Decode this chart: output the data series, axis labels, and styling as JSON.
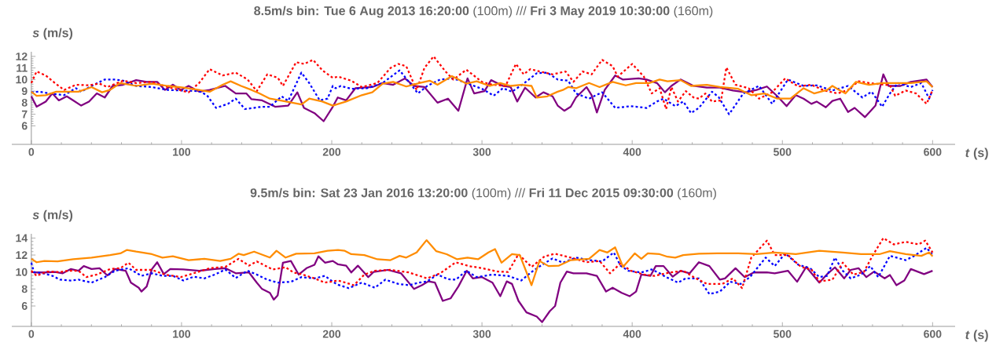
{
  "chart_data": [
    {
      "type": "line",
      "title": "**8.5m/s bin: Tue 6 Aug 2013 16:20:00** (100m)   ///   **Fri 3 May 2019 10:30:00** (160m)",
      "xlabel": "*t* (s)",
      "ylabel": "*s* (m/s)",
      "xlim": [
        -13,
        615
      ],
      "ylim": [
        4.4,
        12.4
      ],
      "xticks": [
        0,
        100,
        200,
        300,
        400,
        500,
        600
      ],
      "yticks": [
        6,
        7,
        8,
        9,
        10,
        11,
        12
      ],
      "series": [
        {
          "color": "#800080",
          "line_style": "solid",
          "x": [
            0,
            3.5,
            9.6,
            14,
            18.3,
            23.6,
            27.9,
            33.2,
            38.4,
            43.6,
            48.9,
            54.1,
            61.1,
            69.8,
            76.8,
            83.8,
            89,
            94.2,
            99.5,
            104.7,
            111.7,
            118.7,
            129.1,
            136.1,
            143.1,
            146.6,
            153.6,
            162.3,
            171,
            177.1,
            181.5,
            188.5,
            194.6,
            200.7,
            204,
            209.6,
            215.7,
            227,
            233.9,
            240.9,
            248.7,
            254.8,
            261.7,
            270.4,
            277.4,
            284.3,
            290.4,
            294.8,
            301.7,
            306.1,
            313.9,
            319.1,
            323.5,
            328.7,
            335.7,
            340.9,
            347,
            350.4,
            354.8,
            359.1,
            362.6,
            369.6,
            373,
            376.5,
            381.7,
            388.7,
            393.9,
            404.3,
            409.6,
            416.5,
            421.8,
            426.1,
            432.2,
            440.9,
            449.7,
            458.4,
            467.1,
            475.8,
            482.8,
            489.7,
            496.7,
            502.8,
            508.9,
            514.1,
            519.3,
            522.8,
            528.9,
            533.3,
            538.5,
            543.7,
            548.1,
            555,
            562,
            567.2,
            570.7,
            578.6,
            585.5,
            596,
            600
          ],
          "values": [
            8.55,
            7.65,
            8.1,
            8.8,
            8.2,
            8.55,
            8.2,
            7.75,
            8.1,
            8.8,
            8.45,
            9.45,
            9.55,
            9.95,
            9.8,
            9.8,
            9.1,
            9.55,
            9.1,
            9.45,
            8.95,
            9.1,
            9.45,
            8.8,
            8.8,
            8.3,
            8.2,
            7.65,
            7.75,
            8.9,
            7.55,
            7.1,
            6.4,
            7.65,
            8.45,
            8.2,
            9.25,
            9.35,
            9.7,
            9.55,
            10.1,
            9.45,
            9.35,
            8,
            8.35,
            7.3,
            10.1,
            8.8,
            9,
            9.95,
            9.45,
            9.35,
            8.1,
            9.3,
            8.45,
            8.9,
            8.55,
            7.75,
            7.3,
            7.65,
            8.45,
            9.35,
            8.65,
            7.15,
            9.1,
            10.35,
            10,
            10.1,
            10,
            9.7,
            8.9,
            9.45,
            10,
            9.45,
            9.3,
            9.3,
            9.05,
            8.9,
            9.1,
            9.4,
            8.55,
            7.7,
            8.65,
            8.35,
            7.9,
            8.1,
            7.6,
            8.15,
            8.35,
            7.2,
            7.55,
            6.75,
            7.75,
            10.45,
            9.45,
            9.45,
            9.8,
            10,
            9.35
          ]
        },
        {
          "color": "#0000ff",
          "line_style": "dotted",
          "x": [
            0,
            5.2,
            12.2,
            21.8,
            29.7,
            33.2,
            40.1,
            48.9,
            55.8,
            61.1,
            69.8,
            80.3,
            90.8,
            101.2,
            111.7,
            116.9,
            123,
            130.9,
            136.1,
            142.2,
            153.6,
            158.8,
            166.7,
            171,
            179.8,
            185,
            192,
            197.2,
            200.7,
            202.6,
            206.1,
            213,
            223.5,
            233.9,
            245.2,
            251.3,
            257.4,
            263.5,
            272.2,
            280.9,
            289.6,
            300,
            307.8,
            313.9,
            320,
            327.8,
            336.5,
            343.5,
            350.4,
            357.4,
            362.6,
            371.3,
            380,
            388.7,
            399.1,
            409.6,
            416.5,
            420.9,
            428.7,
            434,
            439.2,
            444.4,
            453.1,
            457.5,
            464.5,
            474,
            484.5,
            493.2,
            503.7,
            514.1,
            522.8,
            533.3,
            543.7,
            553.3,
            559.4,
            566.4,
            571.6,
            576.8,
            585.5,
            592.5,
            597.7,
            600
          ],
          "values": [
            8.9,
            8.95,
            8.8,
            8.65,
            9.25,
            8.95,
            9.45,
            10,
            10,
            9.9,
            9.45,
            9.35,
            9.1,
            9.05,
            9,
            8.65,
            7.55,
            7.9,
            8.35,
            7.45,
            7.65,
            7.65,
            8.55,
            8.15,
            10.6,
            9.7,
            8.2,
            8.35,
            9.45,
            9.25,
            9.45,
            9.2,
            9.25,
            9.7,
            10.8,
            9.8,
            8.8,
            9.45,
            10,
            10.1,
            9.7,
            9.2,
            8.6,
            9.25,
            8.95,
            9.65,
            10.55,
            10.6,
            10,
            9.9,
            8.8,
            8.35,
            8.9,
            7.55,
            7.7,
            7.55,
            8.1,
            8.35,
            7.7,
            8.1,
            7.1,
            7.55,
            8.95,
            8.5,
            7,
            8.8,
            9.45,
            7.9,
            10,
            9.45,
            9.5,
            9.05,
            9.45,
            8.45,
            8.95,
            7.65,
            8.8,
            9.7,
            9.35,
            9.7,
            8.35,
            9.1
          ]
        },
        {
          "color": "#ff0000",
          "line_style": "dotted",
          "x": [
            0,
            3.5,
            9.6,
            15.7,
            21.8,
            29.7,
            38.4,
            45.4,
            50.6,
            61.1,
            69.8,
            80.3,
            90.8,
            104.7,
            111.7,
            118.7,
            127.4,
            136.1,
            144,
            150.1,
            157.1,
            164.1,
            167.5,
            176.3,
            181.5,
            187.6,
            193.7,
            200.7,
            204.3,
            213,
            220,
            230.4,
            239.1,
            244.3,
            249.6,
            256.5,
            261.7,
            267.8,
            275.7,
            280.9,
            289.6,
            300,
            307,
            315.7,
            322.6,
            327.8,
            332.2,
            338.3,
            347,
            355.7,
            360.9,
            367,
            373,
            380,
            387,
            390.4,
            400,
            407.8,
            413,
            418.3,
            422.6,
            426.1,
            430.5,
            435.7,
            440.9,
            444.4,
            448.8,
            453.1,
            459.2,
            462.7,
            468.8,
            477.5,
            484.5,
            493.2,
            501.9,
            510.6,
            519.3,
            528,
            536.8,
            543.7,
            550.7,
            557.7,
            571.6,
            575.1,
            582.1,
            589,
            596,
            600
          ],
          "values": [
            9.7,
            10.7,
            10.35,
            9.7,
            9.1,
            9.55,
            9.5,
            9.65,
            9.35,
            9.9,
            9.7,
            9.8,
            9.35,
            8.9,
            9.7,
            10.9,
            10.35,
            10.6,
            10,
            9,
            10.45,
            10.15,
            9.45,
            11.5,
            11.35,
            11.7,
            10.8,
            10.15,
            10.25,
            9.9,
            9.35,
            9.7,
            11,
            11.35,
            11.15,
            9.1,
            11,
            12,
            10.7,
            10,
            10.85,
            9.8,
            9.55,
            9.45,
            11.35,
            10.45,
            10.9,
            10.7,
            10.45,
            10.7,
            9.8,
            10.7,
            10.45,
            11.7,
            11.15,
            10.25,
            11.35,
            10.25,
            8.8,
            9.25,
            7.45,
            9.35,
            8.1,
            9,
            8.45,
            8.35,
            8.8,
            8.1,
            8.2,
            11.05,
            9.55,
            9.25,
            8.35,
            8.9,
            10.1,
            9.4,
            9.55,
            9.05,
            8.8,
            9.1,
            9.85,
            9.7,
            9.5,
            8.6,
            9.05,
            8.8,
            7.9,
            9.1
          ]
        },
        {
          "color": "#ff8c00",
          "line_style": "solid",
          "x": [
            0,
            3.5,
            9.6,
            16.6,
            22.7,
            31.4,
            40.1,
            47.1,
            52.4,
            59.3,
            69.8,
            80.3,
            90.8,
            101.2,
            111.7,
            118.7,
            127.4,
            132.7,
            139.6,
            146.6,
            151.8,
            158.8,
            167.5,
            179.8,
            185,
            193.7,
            200.7,
            209.6,
            220,
            227,
            233.9,
            240.9,
            249.6,
            258.3,
            265.2,
            270.4,
            280,
            289.6,
            296.5,
            305.2,
            312.2,
            319.1,
            326.1,
            333,
            336.5,
            343.5,
            350.4,
            353.9,
            357.4,
            362.6,
            371.3,
            378.3,
            387,
            395.7,
            402.6,
            411.3,
            418.3,
            423.5,
            432.2,
            439.2,
            449.7,
            458.4,
            470.6,
            479.3,
            488,
            496.7,
            505.4,
            514.1,
            521.1,
            529.8,
            533.3,
            538.5,
            542,
            549,
            557.7,
            566.4,
            575.1,
            585.5,
            596,
            600
          ],
          "values": [
            8.95,
            8.6,
            8.65,
            8.95,
            8.95,
            8.95,
            9.35,
            8.9,
            9.1,
            9.7,
            9.45,
            9.65,
            9.45,
            9.3,
            9.1,
            8.95,
            9.55,
            9.85,
            9.45,
            9.1,
            8.8,
            8.35,
            8.15,
            7.85,
            8.35,
            8.1,
            7.75,
            8.1,
            8.65,
            8.9,
            9.65,
            9.8,
            9.4,
            9.7,
            9.9,
            9.55,
            10.3,
            9.65,
            9.85,
            9.45,
            9.7,
            9.45,
            9.55,
            9.45,
            8.45,
            8.55,
            8.95,
            9.1,
            9.35,
            9.25,
            9.7,
            9.35,
            9.8,
            9.5,
            9.7,
            9.7,
            10,
            9.85,
            9.95,
            9.45,
            9.55,
            9.35,
            9.2,
            8.65,
            8.8,
            8.35,
            8.35,
            9.25,
            8.8,
            9.1,
            9.45,
            9.05,
            8.8,
            9.8,
            9.55,
            9.7,
            9.7,
            9.7,
            9.85,
            9.35
          ]
        }
      ]
    },
    {
      "type": "line",
      "title": "**9.5m/s bin: Sat 23 Jan 2016 13:20:00** (100m)   ///   **Fri 11 Dec 2015 09:30:00** (160m)",
      "xlabel": "*t* (s)",
      "ylabel": "*s* (m/s)",
      "xlim": [
        -13,
        615
      ],
      "ylim": [
        3.6,
        14.5
      ],
      "xticks": [
        0,
        100,
        200,
        300,
        400,
        500,
        600
      ],
      "yticks": [
        6,
        8,
        10,
        12,
        14
      ],
      "series": [
        {
          "color": "#800080",
          "line_style": "solid",
          "x": [
            0,
            1.7,
            8.7,
            15.7,
            20.9,
            26.2,
            31.4,
            34.9,
            40.1,
            45.4,
            50.6,
            55.8,
            62.8,
            66.3,
            71.5,
            73.3,
            76.8,
            80.3,
            83.8,
            88.2,
            92.5,
            101.2,
            111.7,
            122.2,
            129.1,
            136.1,
            144.9,
            150.1,
            153.6,
            158.8,
            161.4,
            164,
            167.5,
            172.8,
            178,
            183.2,
            188.5,
            191.1,
            195.5,
            200.7,
            204.2,
            209.6,
            213,
            217.4,
            224.3,
            227.8,
            237.4,
            246.1,
            254.8,
            260,
            264.3,
            268.7,
            273.9,
            279.1,
            284.3,
            289.9,
            293.9,
            300,
            307,
            312.2,
            316.5,
            320,
            324.3,
            329.6,
            336.5,
            340,
            345.2,
            348.7,
            352.2,
            356.5,
            360.9,
            369.6,
            376.5,
            382.6,
            387,
            393,
            398.3,
            402.6,
            406.1,
            412.2,
            415.7,
            420.9,
            427,
            432.2,
            438.3,
            444.4,
            451.4,
            458.4,
            461.8,
            468.8,
            474.9,
            481,
            489.7,
            494.9,
            503.7,
            509.8,
            515.9,
            524.6,
            529.8,
            535,
            541.1,
            545.5,
            550.7,
            555.9,
            561.1,
            568.1,
            571.6,
            575.9,
            581.2,
            585.5,
            594.3,
            600
          ],
          "values": [
            10,
            9.95,
            9.95,
            10,
            9.85,
            10.35,
            10.15,
            10.7,
            10.35,
            10.45,
            9.6,
            10.35,
            10.15,
            8.75,
            8.15,
            7.7,
            8.3,
            10.35,
            11.15,
            9.75,
            10.35,
            10.3,
            10.15,
            10.35,
            10.45,
            9.85,
            9.95,
            8.75,
            8,
            7.55,
            6.75,
            7.25,
            11.1,
            11.3,
            9.7,
            10.45,
            10.85,
            11.85,
            11.1,
            11.3,
            10.9,
            10.75,
            9.95,
            10.75,
            9.4,
            10,
            10.25,
            9.85,
            8,
            8.45,
            8.9,
            8.75,
            6.6,
            6.9,
            8.3,
            10.15,
            9.25,
            9.4,
            8.75,
            7.15,
            8.9,
            8.6,
            6.6,
            5.25,
            4.75,
            4.1,
            5.4,
            6,
            8.75,
            10.05,
            9.85,
            9.85,
            9.55,
            7.7,
            8.15,
            7.55,
            7.15,
            7.7,
            9.7,
            9.55,
            10.7,
            10.7,
            9.45,
            10.15,
            9.85,
            11.15,
            10.7,
            9.1,
            9.25,
            10.45,
            9.4,
            9.95,
            9.95,
            9.85,
            10.15,
            8.85,
            10.6,
            8.75,
            9.75,
            10.55,
            9.25,
            10.25,
            10.45,
            9.4,
            10.05,
            9.25,
            9.65,
            8.45,
            9,
            10.35,
            9.75,
            10.15
          ]
        },
        {
          "color": "#0000ff",
          "line_style": "dotted",
          "x": [
            0,
            1.7,
            7.9,
            14,
            19.2,
            26.2,
            31.4,
            40.1,
            48.9,
            55.8,
            64.6,
            73.3,
            80.3,
            87.3,
            94.2,
            101.2,
            108.2,
            115.2,
            122.2,
            129.1,
            136.1,
            144,
            150.1,
            157.1,
            164.1,
            172.8,
            179.8,
            188.5,
            195.5,
            200.7,
            204.2,
            211.3,
            220,
            228.7,
            235.7,
            244.3,
            251.3,
            258.3,
            263.5,
            270.4,
            277.4,
            282.6,
            289.6,
            296.5,
            307,
            317.4,
            326.1,
            333,
            340,
            347,
            353.9,
            362.6,
            371.3,
            380,
            387.8,
            392.2,
            397.4,
            406.1,
            413,
            418.3,
            422.6,
            430.5,
            435.7,
            444.4,
            451.4,
            458.4,
            465.3,
            472.3,
            478.4,
            488.9,
            494.9,
            501.9,
            510.6,
            518.5,
            524.6,
            529.8,
            535,
            540.2,
            545.5,
            552.4,
            558.5,
            563.8,
            571.6,
            582.1,
            587.3,
            596,
            600
          ],
          "values": [
            11.1,
            10,
            9.85,
            9.55,
            9.1,
            9,
            9.1,
            8.75,
            9.4,
            10.15,
            10.45,
            9.55,
            9.85,
            9.55,
            9.55,
            9,
            9.45,
            9.25,
            9.7,
            10.3,
            9.3,
            10.15,
            9.7,
            9.1,
            8.75,
            8.85,
            9.4,
            9.25,
            9.55,
            8.85,
            8.5,
            8.1,
            8.75,
            8.15,
            9.1,
            8.6,
            8.45,
            8.75,
            8.9,
            9.7,
            9.15,
            9.1,
            10.15,
            9.4,
            9.7,
            9.55,
            9,
            10,
            10.85,
            11.6,
            11.1,
            11.7,
            11.4,
            11.25,
            12.3,
            10.75,
            10.15,
            9.95,
            10.3,
            9.85,
            9.4,
            8.75,
            9.25,
            9.25,
            7.4,
            7.7,
            8.85,
            8.6,
            9.4,
            11.7,
            10.7,
            12.2,
            10.85,
            10.45,
            9.4,
            9.55,
            11.7,
            10.15,
            9.25,
            9.7,
            10.7,
            9.4,
            11.9,
            11.4,
            11.85,
            12.85,
            12
          ]
        },
        {
          "color": "#ff0000",
          "line_style": "dotted",
          "x": [
            0,
            3.5,
            10.5,
            19.2,
            24.4,
            31.4,
            36.6,
            43.6,
            52.4,
            59.3,
            64.6,
            69.8,
            80.3,
            89,
            99.5,
            109.9,
            118.7,
            129.1,
            137.9,
            144.9,
            150.1,
            160.6,
            169.3,
            174.5,
            179.8,
            188.5,
            195.5,
            204.2,
            214.8,
            221.7,
            228.7,
            239.1,
            251.3,
            263.5,
            272.2,
            282.6,
            291.3,
            300,
            310.4,
            317.4,
            324.3,
            333,
            341.7,
            348.7,
            359.1,
            369.6,
            378.3,
            385.2,
            392.2,
            399.1,
            407.8,
            414.8,
            422.6,
            425.3,
            434,
            440.9,
            449.7,
            460.1,
            467.1,
            473.2,
            479.3,
            489.7,
            494.9,
            503.7,
            512.4,
            519.3,
            524.6,
            533.3,
            540.2,
            547.2,
            554.2,
            560.3,
            567.2,
            574.2,
            582.1,
            590.8,
            595.1,
            600
          ],
          "values": [
            10.15,
            9.55,
            10.05,
            10,
            10.15,
            10.15,
            9.4,
            9.7,
            10.35,
            10.45,
            11.1,
            10.25,
            10.25,
            9.7,
            9.4,
            9.95,
            10.45,
            10.6,
            11.55,
            10.75,
            11.25,
            10.3,
            10.55,
            9.95,
            9.75,
            9.25,
            8.75,
            9,
            8.45,
            9.7,
            10.15,
            10.25,
            9.95,
            9.25,
            9.85,
            11.15,
            10.7,
            10.45,
            10.05,
            10,
            12.1,
            10.6,
            11.85,
            12.15,
            11.7,
            11.15,
            11.3,
            9.85,
            11,
            10.15,
            9.7,
            9.55,
            9.85,
            9.95,
            10.15,
            9.4,
            8.6,
            8.6,
            9.25,
            8.1,
            11.7,
            13.7,
            12,
            12,
            10.6,
            10.3,
            8.9,
            9.1,
            11.1,
            9.7,
            10,
            12,
            14,
            13.25,
            13.55,
            13.25,
            13.7,
            12.3
          ]
        },
        {
          "color": "#ff8c00",
          "line_style": "solid",
          "x": [
            0,
            3.5,
            8.7,
            17.5,
            27.9,
            40.1,
            52.4,
            59.3,
            63.7,
            69.8,
            80.3,
            87.3,
            94.2,
            104.7,
            115.2,
            125.7,
            132.7,
            137.9,
            141.4,
            148.3,
            158.8,
            163.2,
            169.3,
            176.3,
            188.5,
            197.2,
            204.2,
            208.7,
            213,
            221.7,
            230.4,
            239.1,
            245.2,
            249.6,
            256.5,
            263.1,
            269.6,
            276.5,
            283.5,
            290.4,
            297.4,
            304.3,
            308.7,
            313,
            320,
            325.2,
            333,
            338.3,
            344.3,
            351.3,
            359.1,
            371.3,
            378.3,
            383.5,
            388.7,
            393.9,
            401.7,
            406.1,
            410.4,
            418.3,
            423.5,
            428.7,
            434,
            444.4,
            456.6,
            470.6,
            482.8,
            494.9,
            508.9,
            524.6,
            540.2,
            552.4,
            564.6,
            571.6,
            582.1,
            592.5,
            597.7,
            600
          ],
          "values": [
            11.55,
            11.15,
            11.3,
            11.25,
            11.5,
            11.7,
            12,
            12.2,
            12.6,
            12.4,
            12.1,
            11.7,
            11.85,
            11.4,
            11.55,
            11.3,
            11.55,
            12.15,
            12,
            12.4,
            11.7,
            12.5,
            11.7,
            12.15,
            12.2,
            12.5,
            12.6,
            12.5,
            12.1,
            12,
            11.5,
            11.4,
            11.9,
            11.7,
            12.3,
            13.75,
            12.45,
            12.1,
            11.5,
            11.7,
            11.5,
            12.3,
            12.7,
            11.1,
            12.1,
            12,
            8.45,
            11.3,
            10.7,
            10.75,
            11.4,
            11.55,
            12.6,
            12.3,
            12.9,
            10.6,
            12.2,
            11.55,
            12.2,
            12.1,
            11.8,
            11.7,
            12,
            12.15,
            12.2,
            12.2,
            12.1,
            12.3,
            12.1,
            12.5,
            12.3,
            12.1,
            12.1,
            12.45,
            12.1,
            11.9,
            12.3,
            11.85
          ]
        }
      ]
    }
  ]
}
